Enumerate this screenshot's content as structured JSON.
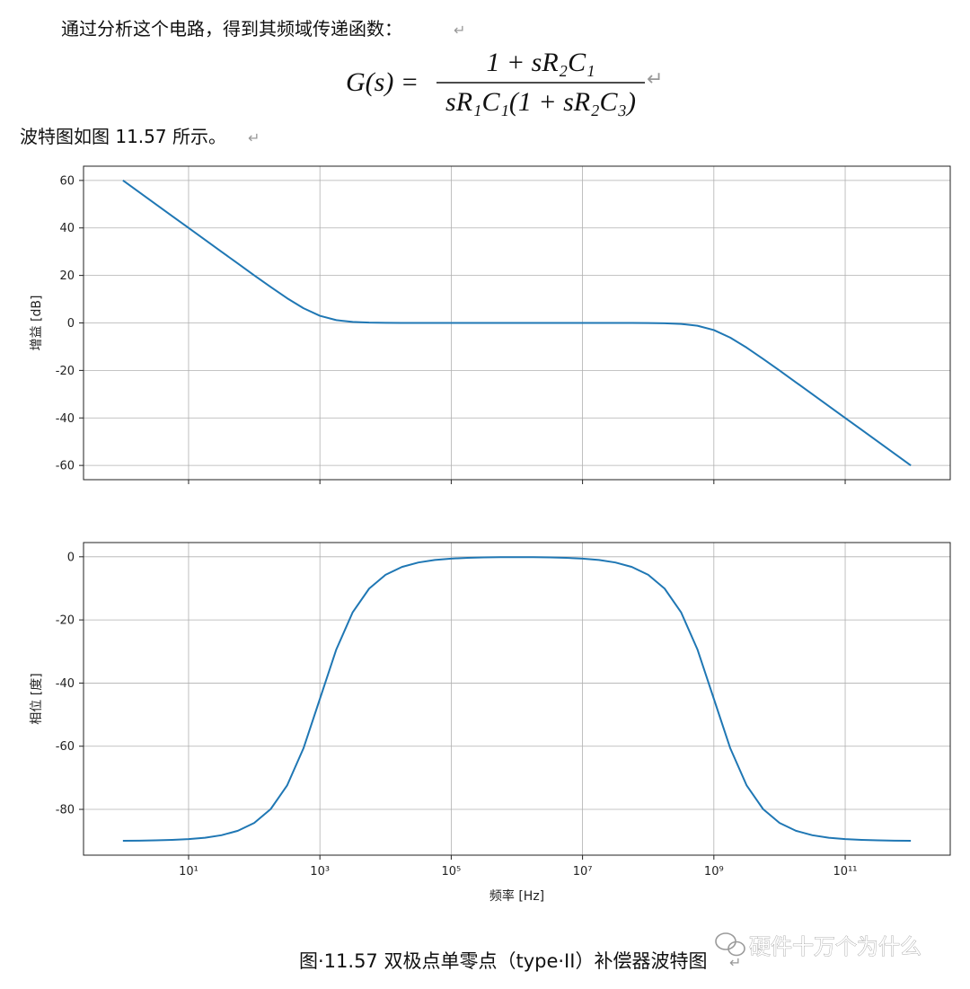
{
  "paragraphs": [
    "通过分析这个电路，得到其频域传递函数：",
    "波特图如图 11.57 所示。"
  ],
  "paragraph_mark": "↵",
  "formula": {
    "lhs": "G(s) =",
    "numerator": "1 + sR₂C₁",
    "denominator": "sR₁C₁(1 + sR₂C₃)"
  },
  "caption": "图·11.57 双极点单零点（type·II）补偿器波特图",
  "watermark": "硬件十万个为什么",
  "chart_data": [
    {
      "type": "line",
      "ylabel": "增益 [dB]",
      "color": "#1f77b4",
      "grid": true,
      "xscale": "log",
      "sharex": true,
      "x": [
        1,
        1.778,
        3.162,
        5.623,
        10,
        17.78,
        31.62,
        56.23,
        100,
        177.8,
        316.2,
        562.3,
        1000,
        1778,
        3162,
        5623,
        10000.0,
        17780.0,
        31620.0,
        56230.0,
        100000.0,
        177800.0,
        316200.0,
        562300.0,
        1000000.0,
        1778000.0,
        3162000.0,
        5623000.0,
        10000000.0,
        17780000.0,
        31620000.0,
        56230000.0,
        100000000.0,
        177800000.0,
        316200000.0,
        562300000.0,
        1000000000.0,
        1778000000.0,
        3162000000.0,
        5623000000.0,
        10000000000.0,
        17780000000.0,
        31620000000.0,
        56230000000.0,
        100000000000.0,
        177800000000.0,
        316200000000.0,
        562300000000.0,
        1000000000000.0
      ],
      "values": [
        60,
        55,
        50,
        45,
        40,
        35.001,
        30.004,
        25.014,
        20.043,
        15.135,
        10.414,
        6.193,
        3.01,
        1.193,
        0.414,
        0.135,
        0.043,
        0.014,
        0.004,
        0.001,
        0,
        0,
        0,
        0,
        0,
        0,
        0,
        0,
        0,
        -0.001,
        -0.004,
        -0.014,
        -0.043,
        -0.135,
        -0.414,
        -1.193,
        -3.01,
        -6.193,
        -10.414,
        -15.135,
        -20.043,
        -25.014,
        -30.004,
        -35.001,
        -40,
        -45,
        -50,
        -55,
        -60
      ],
      "ylim": [
        -66,
        66
      ],
      "yticks": [
        -60,
        -40,
        -20,
        0,
        20,
        40,
        60
      ]
    },
    {
      "type": "line",
      "ylabel": "相位 [度]",
      "xlabel": "频率 [Hz]",
      "color": "#1f77b4",
      "grid": true,
      "xscale": "log",
      "x": [
        1,
        1.778,
        3.162,
        5.623,
        10,
        17.78,
        31.62,
        56.23,
        100,
        177.8,
        316.2,
        562.3,
        1000,
        1778,
        3162,
        5623,
        10000.0,
        17780.0,
        31620.0,
        56230.0,
        100000.0,
        177800.0,
        316200.0,
        562300.0,
        1000000.0,
        1778000.0,
        3162000.0,
        5623000.0,
        10000000.0,
        17780000.0,
        31620000.0,
        56230000.0,
        100000000.0,
        177800000.0,
        316200000.0,
        562300000.0,
        1000000000.0,
        1778000000.0,
        3162000000.0,
        5623000000.0,
        10000000000.0,
        17780000000.0,
        31620000000.0,
        56230000000.0,
        100000000000.0,
        177800000000.0,
        316200000000.0,
        562300000000.0,
        1000000000000.0
      ],
      "values": [
        -89.943,
        -89.898,
        -89.819,
        -89.678,
        -89.427,
        -88.981,
        -88.189,
        -86.782,
        -84.289,
        -79.92,
        -72.45,
        -60.65,
        -45,
        -29.35,
        -17.55,
        -10.08,
        -5.712,
        -3.219,
        -1.813,
        -1.022,
        -0.579,
        -0.332,
        -0.199,
        -0.134,
        -0.115,
        -0.134,
        -0.199,
        -0.332,
        -0.579,
        -1.022,
        -1.813,
        -3.219,
        -5.712,
        -10.08,
        -17.55,
        -29.35,
        -45,
        -60.65,
        -72.45,
        -79.92,
        -84.289,
        -86.782,
        -88.189,
        -88.981,
        -89.427,
        -89.678,
        -89.819,
        -89.898,
        -89.943
      ],
      "xlim": [
        0.2512,
        3981000000000.0
      ],
      "xticks": [
        {
          "value": 10,
          "label": "10¹"
        },
        {
          "value": 1000,
          "label": "10³"
        },
        {
          "value": 100000,
          "label": "10⁵"
        },
        {
          "value": 10000000,
          "label": "10⁷"
        },
        {
          "value": 1000000000,
          "label": "10⁹"
        },
        {
          "value": 100000000000,
          "label": "10¹¹"
        }
      ],
      "ylim": [
        -94.5,
        4.5
      ],
      "yticks": [
        -80,
        -60,
        -40,
        -20,
        0
      ]
    }
  ]
}
